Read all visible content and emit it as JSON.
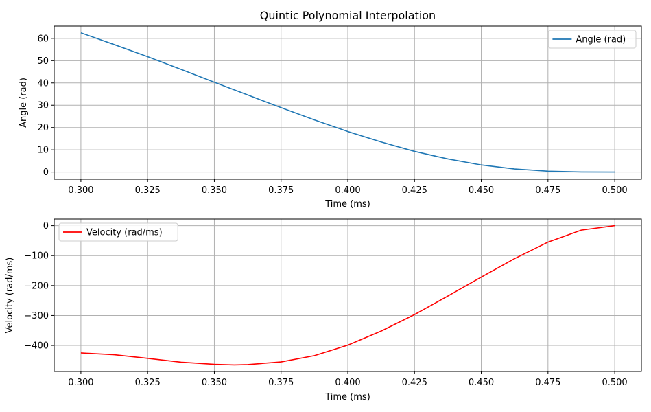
{
  "chart_data": [
    {
      "type": "line",
      "title": "Quintic Polynomial Interpolation",
      "xlabel": "Time (ms)",
      "ylabel": "Angle (rad)",
      "xlim": [
        0.29,
        0.51
      ],
      "ylim": [
        -3.2,
        65.5
      ],
      "xticks": [
        0.3,
        0.325,
        0.35,
        0.375,
        0.4,
        0.425,
        0.45,
        0.475,
        0.5
      ],
      "xtick_labels": [
        "0.300",
        "0.325",
        "0.350",
        "0.375",
        "0.400",
        "0.425",
        "0.450",
        "0.475",
        "0.500"
      ],
      "yticks": [
        0,
        10,
        20,
        30,
        40,
        50,
        60
      ],
      "ytick_labels": [
        "0",
        "10",
        "20",
        "30",
        "40",
        "50",
        "60"
      ],
      "grid": true,
      "legend_position": "upper right",
      "series": [
        {
          "name": "Angle (rad)",
          "color": "#1f77b4",
          "x": [
            0.3,
            0.3125,
            0.325,
            0.3375,
            0.35,
            0.3625,
            0.375,
            0.3875,
            0.4,
            0.4125,
            0.425,
            0.4375,
            0.45,
            0.4625,
            0.475,
            0.4875,
            0.5
          ],
          "y": [
            62.5,
            57.2,
            51.8,
            46.1,
            40.3,
            34.6,
            28.9,
            23.4,
            18.2,
            13.5,
            9.3,
            5.9,
            3.2,
            1.4,
            0.4,
            0.05,
            0.0
          ]
        }
      ]
    },
    {
      "type": "line",
      "title": "",
      "xlabel": "Time (ms)",
      "ylabel": "Velocity (rad/ms)",
      "xlim": [
        0.29,
        0.51
      ],
      "ylim": [
        -487,
        22
      ],
      "xticks": [
        0.3,
        0.325,
        0.35,
        0.375,
        0.4,
        0.425,
        0.45,
        0.475,
        0.5
      ],
      "xtick_labels": [
        "0.300",
        "0.325",
        "0.350",
        "0.375",
        "0.400",
        "0.425",
        "0.450",
        "0.475",
        "0.500"
      ],
      "yticks": [
        0,
        -100,
        -200,
        -300,
        -400
      ],
      "ytick_labels": [
        "0",
        "−100",
        "−200",
        "−300",
        "−400"
      ],
      "grid": true,
      "legend_position": "upper left",
      "series": [
        {
          "name": "Velocity (rad/ms)",
          "color": "#ff0000",
          "x": [
            0.3,
            0.3125,
            0.325,
            0.3375,
            0.35,
            0.3575,
            0.3625,
            0.375,
            0.3875,
            0.4,
            0.4125,
            0.425,
            0.4375,
            0.45,
            0.4625,
            0.475,
            0.4875,
            0.5
          ],
          "y": [
            -425,
            -431,
            -443,
            -456,
            -463,
            -465,
            -464,
            -455,
            -434,
            -399,
            -352,
            -297,
            -235,
            -172,
            -110,
            -55,
            -15,
            0
          ]
        }
      ]
    }
  ]
}
